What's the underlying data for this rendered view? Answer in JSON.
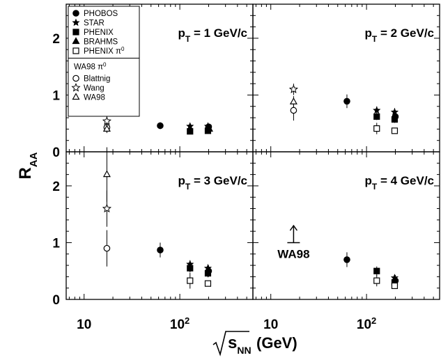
{
  "chart_data": {
    "type": "scatter",
    "xlabel": "√s_NN (GeV)",
    "ylabel": "R_AA",
    "xscale": "log",
    "xlim": [
      6.5,
      580
    ],
    "ylim": [
      0,
      2.6
    ],
    "x_ticks": [
      {
        "v": 10,
        "base": "10",
        "sup": ""
      },
      {
        "v": 100,
        "base": "10",
        "sup": "2"
      }
    ],
    "y_ticks": [
      0,
      1,
      2
    ],
    "layout": "2x2 panels, shared axes",
    "legend": {
      "placement": "top-left (upper left panel)",
      "entries": [
        {
          "id": "phobos",
          "label": "PHOBOS",
          "marker": "circle-filled"
        },
        {
          "id": "star",
          "label": "STAR",
          "marker": "star-filled"
        },
        {
          "id": "phenix",
          "label": "PHENIX",
          "marker": "square-filled"
        },
        {
          "id": "brahms",
          "label": "BRAHMS",
          "marker": "triangle-filled"
        },
        {
          "id": "phenix_pi0",
          "label": "PHENIX π",
          "sup": "0",
          "marker": "square-open"
        }
      ],
      "group_title": "WA98 π",
      "group_title_sup": "0",
      "group_entries": [
        {
          "id": "blattnig",
          "label": "Blattnig",
          "marker": "circle-open"
        },
        {
          "id": "wang",
          "label": "Wang",
          "marker": "star-open"
        },
        {
          "id": "wa98",
          "label": "WA98",
          "marker": "triangle-open"
        }
      ]
    },
    "panels": [
      {
        "label_main": "p",
        "label_sub": "T",
        "label_rest": " = 1 GeV/c",
        "points": [
          {
            "series": "blattnig",
            "x": 17.3,
            "y": 0.43,
            "err": 0.08
          },
          {
            "series": "wang",
            "x": 17.3,
            "y": 0.54,
            "err": 0.08
          },
          {
            "series": "wa98",
            "x": 17.3,
            "y": 0.4,
            "err": 0.07
          },
          {
            "series": "phobos",
            "x": 62.4,
            "y": 0.46,
            "err": 0.06
          },
          {
            "series": "phenix",
            "x": 130,
            "y": 0.36,
            "err": 0.04
          },
          {
            "series": "star",
            "x": 130,
            "y": 0.45,
            "err": 0.03
          },
          {
            "series": "phobos",
            "x": 200,
            "y": 0.44,
            "err": 0.05
          },
          {
            "series": "star",
            "x": 200,
            "y": 0.45,
            "err": 0.04
          },
          {
            "series": "phenix",
            "x": 200,
            "y": 0.37,
            "err": 0.04
          },
          {
            "series": "brahms",
            "x": 200,
            "y": 0.4,
            "err": 0.04
          }
        ]
      },
      {
        "label_main": "p",
        "label_sub": "T",
        "label_rest": " = 2 GeV/c",
        "points": [
          {
            "series": "blattnig",
            "x": 17.3,
            "y": 0.73,
            "err": 0.18
          },
          {
            "series": "wang",
            "x": 17.3,
            "y": 1.1,
            "err": 0.1
          },
          {
            "series": "wa98",
            "x": 17.3,
            "y": 0.88,
            "err": 0.1
          },
          {
            "series": "phobos",
            "x": 62.4,
            "y": 0.89,
            "err": 0.12
          },
          {
            "series": "star",
            "x": 130,
            "y": 0.73,
            "err": 0.07
          },
          {
            "series": "phenix",
            "x": 130,
            "y": 0.62,
            "err": 0.06
          },
          {
            "series": "phenix_pi0",
            "x": 130,
            "y": 0.41,
            "err": 0.1
          },
          {
            "series": "star",
            "x": 200,
            "y": 0.7,
            "err": 0.07
          },
          {
            "series": "phobos",
            "x": 200,
            "y": 0.62,
            "err": 0.08
          },
          {
            "series": "phenix",
            "x": 200,
            "y": 0.57,
            "err": 0.06
          },
          {
            "series": "phenix_pi0",
            "x": 200,
            "y": 0.37,
            "err": 0.05
          }
        ]
      },
      {
        "label_main": "p",
        "label_sub": "T",
        "label_rest": " = 3 GeV/c",
        "points": [
          {
            "series": "blattnig",
            "x": 17.3,
            "y": 0.9,
            "err": 0.32
          },
          {
            "series": "wang",
            "x": 17.3,
            "y": 1.6,
            "err": 0.32
          },
          {
            "series": "wa98",
            "x": 17.3,
            "y": 2.2,
            "err": 0.48
          },
          {
            "series": "phobos",
            "x": 62.4,
            "y": 0.87,
            "err": 0.13
          },
          {
            "series": "star",
            "x": 130,
            "y": 0.62,
            "err": 0.07
          },
          {
            "series": "phenix",
            "x": 130,
            "y": 0.55,
            "err": 0.07
          },
          {
            "series": "phenix_pi0",
            "x": 130,
            "y": 0.33,
            "err": 0.14
          },
          {
            "series": "star",
            "x": 200,
            "y": 0.55,
            "err": 0.07
          },
          {
            "series": "phobos",
            "x": 200,
            "y": 0.5,
            "err": 0.1
          },
          {
            "series": "phenix",
            "x": 200,
            "y": 0.46,
            "err": 0.07
          },
          {
            "series": "phenix_pi0",
            "x": 200,
            "y": 0.28,
            "err": 0.05
          }
        ]
      },
      {
        "label_main": "p",
        "label_sub": "T",
        "label_rest": " = 4 GeV/c",
        "annotation": {
          "text": "WA98",
          "x": 17.3,
          "y_from": 1.0,
          "y_to": 1.3,
          "kind": "lower-limit arrow"
        },
        "points": [
          {
            "series": "phobos",
            "x": 62.4,
            "y": 0.7,
            "err": 0.13
          },
          {
            "series": "phenix",
            "x": 130,
            "y": 0.5,
            "err": 0.08
          },
          {
            "series": "phenix_pi0",
            "x": 130,
            "y": 0.33,
            "err": 0.1
          },
          {
            "series": "star",
            "x": 200,
            "y": 0.38,
            "err": 0.06
          },
          {
            "series": "phobos",
            "x": 200,
            "y": 0.33,
            "err": 0.1
          },
          {
            "series": "phenix",
            "x": 200,
            "y": 0.3,
            "err": 0.06
          },
          {
            "series": "phenix_pi0",
            "x": 200,
            "y": 0.24,
            "err": 0.05
          }
        ]
      }
    ]
  }
}
